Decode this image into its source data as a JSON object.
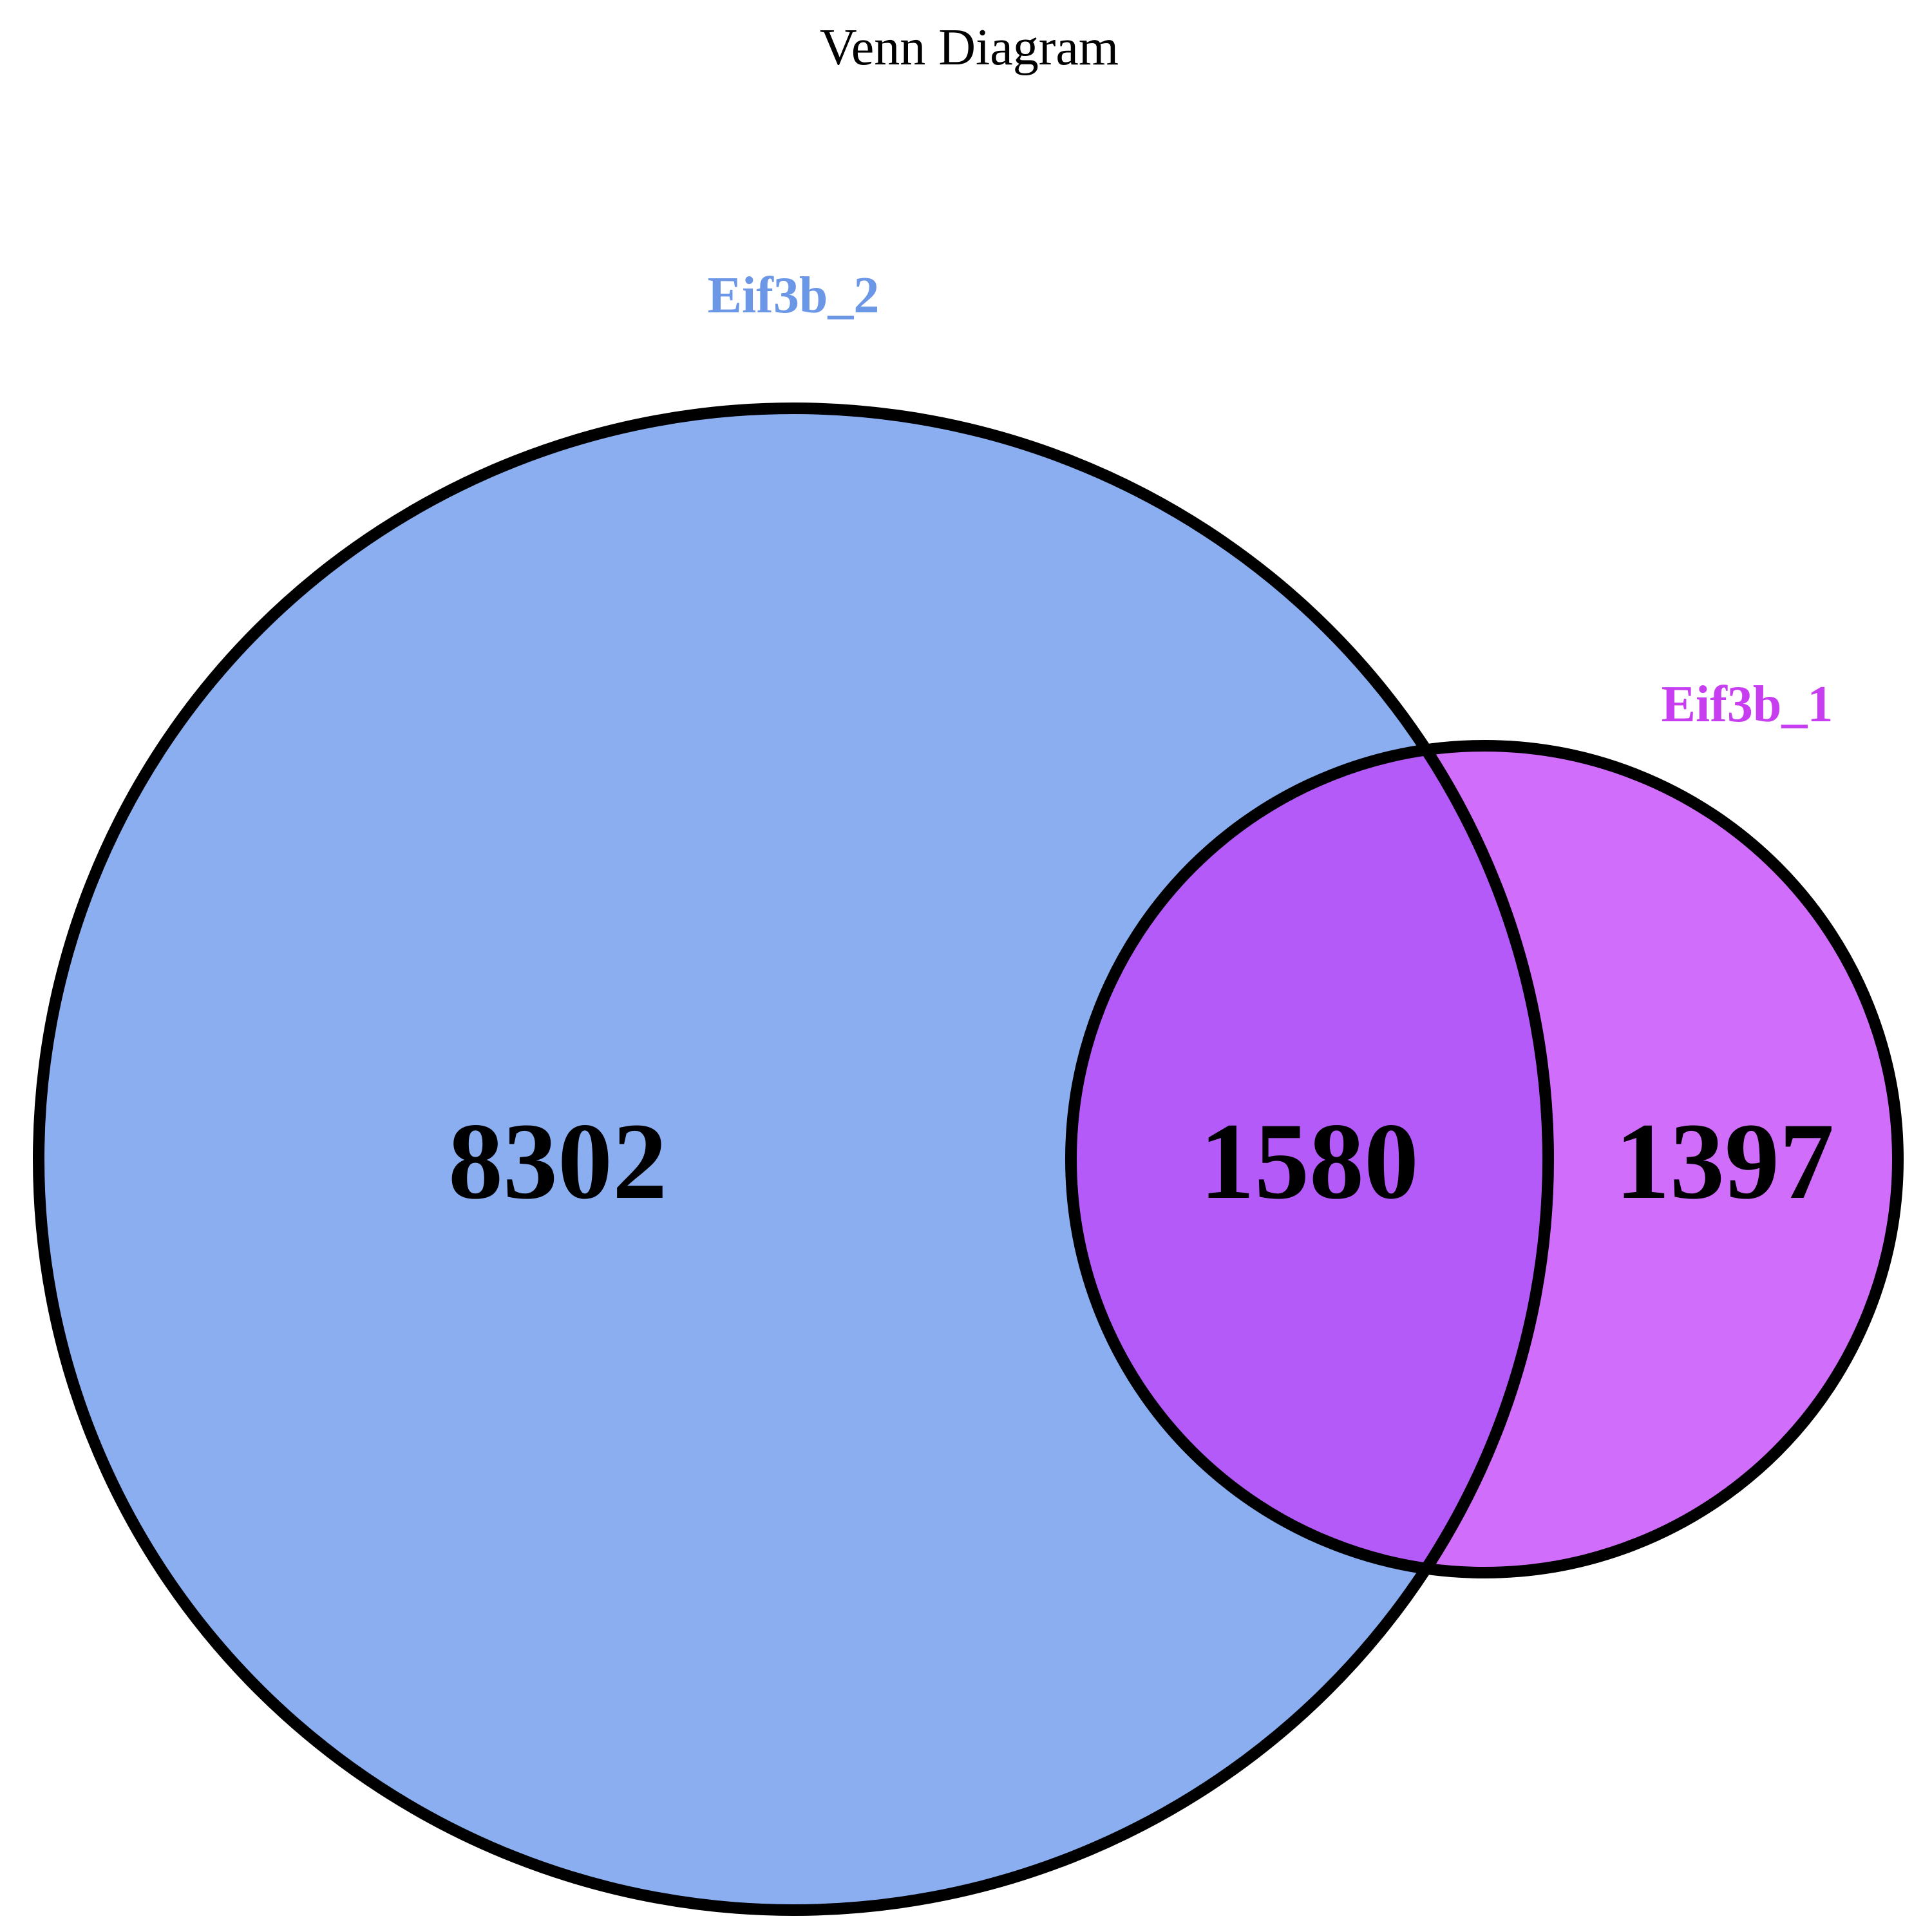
{
  "title": "Venn Diagram",
  "sets": [
    {
      "name": "Eif3b_2",
      "label_color": "#6c96e6",
      "fill_color": "#8aaeef"
    },
    {
      "name": "Eif3b_1",
      "label_color": "#c63ef0",
      "fill_color": "#d06dfa"
    }
  ],
  "intersection_fill_color": "#b35af8",
  "outline_color": "#000000",
  "counts": {
    "only_eif3b_2": "8302",
    "both": "1580",
    "only_eif3b_1": "1397"
  }
}
